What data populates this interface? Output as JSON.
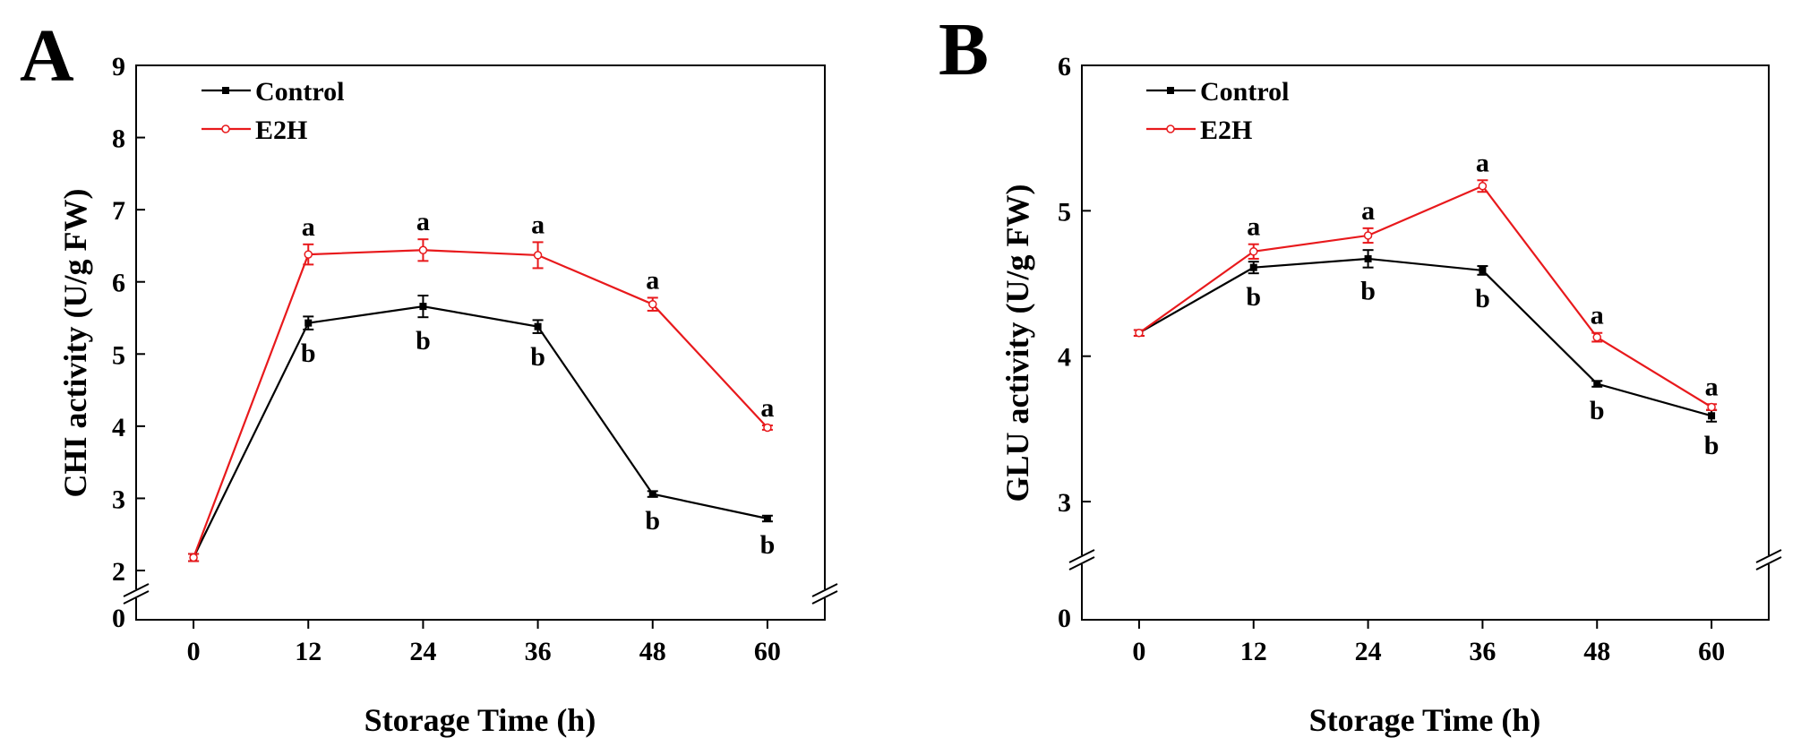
{
  "colors": {
    "control": "#000000",
    "e2h": "#e8191c"
  },
  "chart_data": [
    {
      "panel": "A",
      "type": "line",
      "xlabel": "Storage Time (h)",
      "ylabel": "CHI activity (U/g FW)",
      "x": [
        0,
        12,
        24,
        36,
        48,
        60
      ],
      "x_ticks": [
        "0",
        "12",
        "24",
        "36",
        "48",
        "60"
      ],
      "xlim": [
        -6,
        66
      ],
      "ylim_upper": [
        2,
        9
      ],
      "y_ticks": [
        "2",
        "3",
        "4",
        "5",
        "6",
        "7",
        "8",
        "9"
      ],
      "y_break_tick": "0",
      "legend_position": "top-left",
      "series": [
        {
          "name": "Control",
          "marker": "filled-square",
          "values": [
            2.18,
            5.43,
            5.66,
            5.38,
            3.06,
            2.72
          ],
          "errors": [
            0.05,
            0.09,
            0.15,
            0.09,
            0.04,
            0.04
          ],
          "letters": [
            "",
            "b",
            "b",
            "b",
            "b",
            "b"
          ]
        },
        {
          "name": "E2H",
          "marker": "open-circle",
          "values": [
            2.18,
            6.38,
            6.44,
            6.37,
            5.69,
            3.98
          ],
          "errors": [
            0.05,
            0.14,
            0.15,
            0.18,
            0.09,
            0.03
          ],
          "letters": [
            "",
            "a",
            "a",
            "a",
            "a",
            "a"
          ]
        }
      ]
    },
    {
      "panel": "B",
      "type": "line",
      "xlabel": "Storage Time (h)",
      "ylabel": "GLU activity (U/g FW)",
      "x": [
        0,
        12,
        24,
        36,
        48,
        60
      ],
      "x_ticks": [
        "0",
        "12",
        "24",
        "36",
        "48",
        "60"
      ],
      "xlim": [
        -6,
        66
      ],
      "ylim_upper": [
        2.6,
        6
      ],
      "y_ticks": [
        "3",
        "4",
        "5",
        "6"
      ],
      "y_break_tick": "0",
      "legend_position": "top-left",
      "series": [
        {
          "name": "Control",
          "marker": "filled-square",
          "values": [
            4.16,
            4.61,
            4.67,
            4.59,
            3.81,
            3.59
          ],
          "errors": [
            0.02,
            0.04,
            0.06,
            0.03,
            0.02,
            0.04
          ],
          "letters": [
            "",
            "b",
            "b",
            "b",
            "b",
            "b"
          ]
        },
        {
          "name": "E2H",
          "marker": "open-circle",
          "values": [
            4.16,
            4.72,
            4.83,
            5.17,
            4.13,
            3.65
          ],
          "errors": [
            0.02,
            0.05,
            0.05,
            0.04,
            0.03,
            0.02
          ],
          "letters": [
            "",
            "a",
            "a",
            "a",
            "a",
            "a"
          ]
        }
      ]
    }
  ]
}
